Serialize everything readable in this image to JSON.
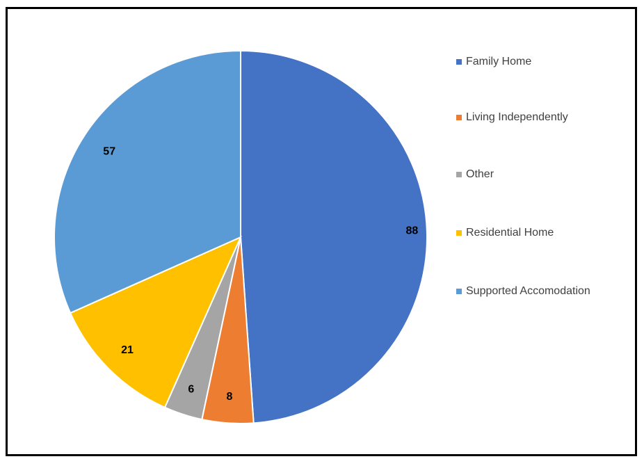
{
  "chart_data": {
    "type": "pie",
    "categories": [
      "Family Home",
      "Living Independently",
      "Other",
      "Residential Home",
      "Supported Accomodation"
    ],
    "values": [
      88,
      8,
      6,
      21,
      57
    ],
    "colors": [
      "#4472C4",
      "#ED7D31",
      "#A5A5A5",
      "#FFC000",
      "#5B9BD5"
    ],
    "data_labels": [
      "88",
      "8",
      "6",
      "21",
      "57"
    ],
    "legend_position": "right",
    "start_angle": "12 o'clock, clockwise"
  }
}
